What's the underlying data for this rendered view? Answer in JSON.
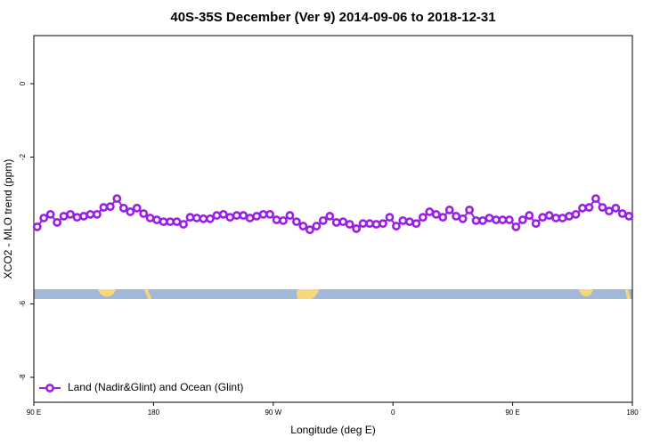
{
  "chart_data": {
    "type": "line",
    "title": "40S-35S December (Ver 9)   2014-09-06 to 2018-12-31",
    "x_label": "Longitude (deg E)",
    "y_label": "XCO2 - MLO trend (ppm)",
    "xlim": [
      90,
      540
    ],
    "ylim": [
      -8.68,
      1.31
    ],
    "xticks": [
      {
        "value": 90,
        "label": "90 E"
      },
      {
        "value": 180,
        "label": "180"
      },
      {
        "value": 270,
        "label": "90 W"
      },
      {
        "value": 360,
        "label": "0"
      },
      {
        "value": 450,
        "label": "90 E"
      },
      {
        "value": 540,
        "label": "180"
      }
    ],
    "yticks": [
      0,
      -2,
      -6,
      -8
    ],
    "legend": "bottom-left",
    "x": [
      92.5,
      97.5,
      102.5,
      107.5,
      112.5,
      117.5,
      122.5,
      127.5,
      132.5,
      137.5,
      142.5,
      147.5,
      152.5,
      157.5,
      162.5,
      167.5,
      172.5,
      177.5,
      182.5,
      187.5,
      192.5,
      197.5,
      202.5,
      207.5,
      212.5,
      217.5,
      222.5,
      227.5,
      232.5,
      237.5,
      242.5,
      247.5,
      252.5,
      257.5,
      262.5,
      267.5,
      272.5,
      277.5,
      282.5,
      287.5,
      292.5,
      297.5,
      302.5,
      307.5,
      312.5,
      317.5,
      322.5,
      327.5,
      332.5,
      337.5,
      342.5,
      347.5,
      352.5,
      357.5,
      362.5,
      367.5,
      372.5,
      377.5,
      382.5,
      387.5,
      392.5,
      397.5,
      402.5,
      407.5,
      412.5,
      417.5,
      422.5,
      427.5,
      432.5,
      437.5,
      442.5,
      447.5,
      452.5,
      457.5,
      462.5,
      467.5,
      472.5,
      477.5,
      482.5,
      487.5,
      492.5,
      497.5,
      502.5,
      507.5,
      512.5,
      517.5,
      522.5,
      527.5,
      532.5,
      537.5
    ],
    "series": [
      {
        "name": "Land (Nadir&Glint) and Ocean (Glint)",
        "color": "#9a1ee6",
        "values": [
          -3.9,
          -3.66,
          -3.56,
          -3.78,
          -3.61,
          -3.56,
          -3.64,
          -3.61,
          -3.56,
          -3.56,
          -3.37,
          -3.35,
          -3.13,
          -3.39,
          -3.49,
          -3.39,
          -3.54,
          -3.66,
          -3.71,
          -3.76,
          -3.76,
          -3.76,
          -3.83,
          -3.64,
          -3.66,
          -3.68,
          -3.68,
          -3.59,
          -3.56,
          -3.64,
          -3.59,
          -3.59,
          -3.66,
          -3.61,
          -3.56,
          -3.56,
          -3.71,
          -3.73,
          -3.59,
          -3.76,
          -3.88,
          -3.98,
          -3.88,
          -3.73,
          -3.61,
          -3.78,
          -3.76,
          -3.83,
          -3.95,
          -3.81,
          -3.81,
          -3.83,
          -3.81,
          -3.64,
          -3.88,
          -3.73,
          -3.76,
          -3.81,
          -3.64,
          -3.49,
          -3.56,
          -3.64,
          -3.44,
          -3.61,
          -3.68,
          -3.44,
          -3.73,
          -3.73,
          -3.66,
          -3.71,
          -3.71,
          -3.71,
          -3.9,
          -3.71,
          -3.59,
          -3.81,
          -3.64,
          -3.59,
          -3.66,
          -3.66,
          -3.61,
          -3.56,
          -3.39,
          -3.37,
          -3.13,
          -3.37,
          -3.47,
          -3.39,
          -3.54,
          -3.61
        ]
      }
    ]
  }
}
